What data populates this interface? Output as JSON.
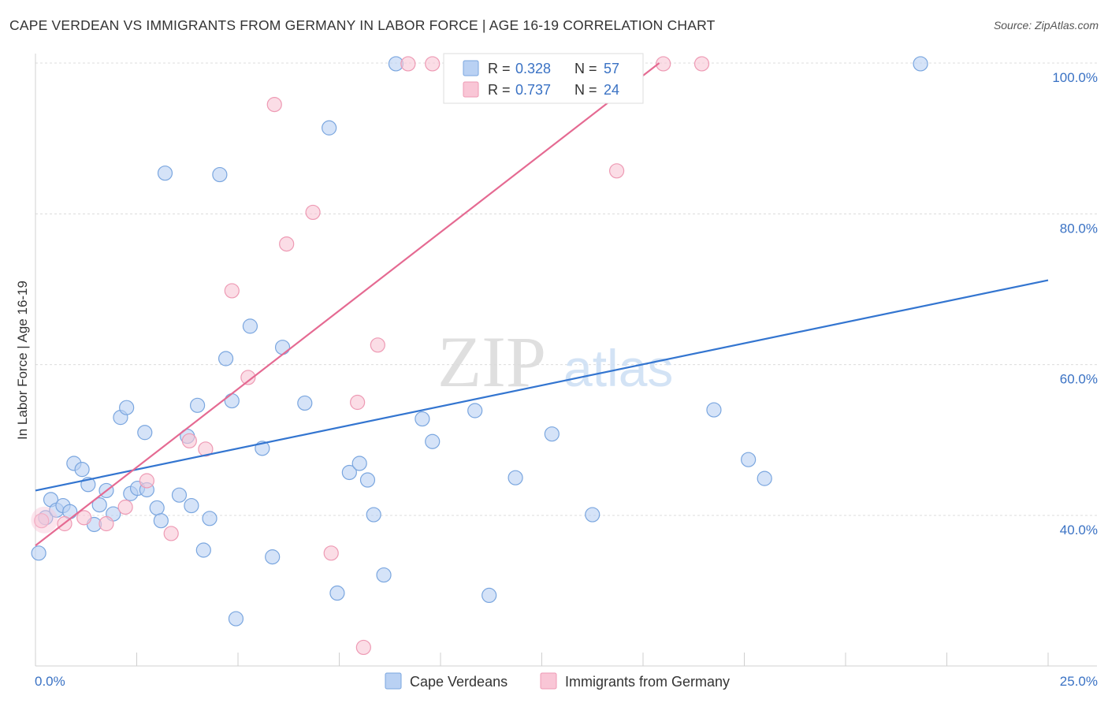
{
  "header": {
    "title": "CAPE VERDEAN VS IMMIGRANTS FROM GERMANY IN LABOR FORCE | AGE 16-19 CORRELATION CHART",
    "source": "Source: ZipAtlas.com"
  },
  "watermark": {
    "zip": "ZIP",
    "atlas": "atlas"
  },
  "legend": {
    "r_label": "R =",
    "n_label": "N =",
    "entries": [
      {
        "r": "0.328",
        "n": "57"
      },
      {
        "r": "0.737",
        "n": "24"
      }
    ]
  },
  "colors": {
    "blue_fill": "#b9d1f3",
    "blue_stroke": "#7aa6df",
    "blue_line": "#3375d0",
    "pink_fill": "#f9c6d6",
    "pink_stroke": "#ee9ab4",
    "pink_line": "#e56a92"
  },
  "chart_data": {
    "type": "scatter",
    "title": "CAPE VERDEAN VS IMMIGRANTS FROM GERMANY IN LABOR FORCE | AGE 16-19 CORRELATION CHART",
    "xlabel": "",
    "ylabel": "In Labor Force | Age 16-19",
    "xlim": [
      0,
      25
    ],
    "ylim": [
      22,
      101
    ],
    "x_tick_labels": [
      "0.0%",
      "25.0%"
    ],
    "y_ticks": [
      40,
      60,
      80,
      100
    ],
    "y_tick_labels": [
      "40.0%",
      "60.0%",
      "80.0%",
      "100.0%"
    ],
    "grid": true,
    "legend_position": "top-center",
    "series": [
      {
        "name": "Cape Verdeans",
        "color": "#b9d1f3",
        "r": 0.328,
        "n": 57,
        "trend": {
          "x": [
            0,
            25
          ],
          "y": [
            43.3,
            71.2
          ]
        },
        "points": [
          {
            "x": 0.08,
            "y": 35.0
          },
          {
            "x": 0.25,
            "y": 39.7
          },
          {
            "x": 0.38,
            "y": 42.1
          },
          {
            "x": 0.52,
            "y": 40.7
          },
          {
            "x": 0.68,
            "y": 41.3
          },
          {
            "x": 0.85,
            "y": 40.5
          },
          {
            "x": 0.95,
            "y": 46.9
          },
          {
            "x": 1.15,
            "y": 46.1
          },
          {
            "x": 1.3,
            "y": 44.1
          },
          {
            "x": 1.45,
            "y": 38.8
          },
          {
            "x": 1.58,
            "y": 41.4
          },
          {
            "x": 1.75,
            "y": 43.3
          },
          {
            "x": 1.92,
            "y": 40.2
          },
          {
            "x": 2.1,
            "y": 53.0
          },
          {
            "x": 2.25,
            "y": 54.3
          },
          {
            "x": 2.35,
            "y": 42.9
          },
          {
            "x": 2.52,
            "y": 43.6
          },
          {
            "x": 2.7,
            "y": 51.0
          },
          {
            "x": 2.75,
            "y": 43.4
          },
          {
            "x": 3.0,
            "y": 41.0
          },
          {
            "x": 3.1,
            "y": 39.3
          },
          {
            "x": 3.2,
            "y": 85.4
          },
          {
            "x": 3.55,
            "y": 42.7
          },
          {
            "x": 3.75,
            "y": 50.5
          },
          {
            "x": 3.85,
            "y": 41.3
          },
          {
            "x": 4.0,
            "y": 54.6
          },
          {
            "x": 4.15,
            "y": 35.4
          },
          {
            "x": 4.3,
            "y": 39.6
          },
          {
            "x": 4.55,
            "y": 85.2
          },
          {
            "x": 4.7,
            "y": 60.8
          },
          {
            "x": 4.85,
            "y": 55.2
          },
          {
            "x": 4.95,
            "y": 26.3
          },
          {
            "x": 5.3,
            "y": 65.1
          },
          {
            "x": 5.6,
            "y": 48.9
          },
          {
            "x": 5.85,
            "y": 34.5
          },
          {
            "x": 6.1,
            "y": 62.3
          },
          {
            "x": 6.65,
            "y": 54.9
          },
          {
            "x": 7.25,
            "y": 91.4
          },
          {
            "x": 7.45,
            "y": 29.7
          },
          {
            "x": 7.75,
            "y": 45.7
          },
          {
            "x": 8.0,
            "y": 46.9
          },
          {
            "x": 8.2,
            "y": 44.7
          },
          {
            "x": 8.35,
            "y": 40.1
          },
          {
            "x": 8.6,
            "y": 32.1
          },
          {
            "x": 8.9,
            "y": 99.9
          },
          {
            "x": 9.55,
            "y": 52.8
          },
          {
            "x": 9.8,
            "y": 49.8
          },
          {
            "x": 10.85,
            "y": 53.9
          },
          {
            "x": 11.2,
            "y": 29.4
          },
          {
            "x": 11.85,
            "y": 45.0
          },
          {
            "x": 12.75,
            "y": 50.8
          },
          {
            "x": 13.6,
            "y": 99.9
          },
          {
            "x": 13.75,
            "y": 40.1
          },
          {
            "x": 16.75,
            "y": 54.0
          },
          {
            "x": 17.6,
            "y": 47.4
          },
          {
            "x": 18.0,
            "y": 44.9
          },
          {
            "x": 21.85,
            "y": 99.9
          }
        ]
      },
      {
        "name": "Immigrants from Germany",
        "color": "#f9c6d6",
        "r": 0.737,
        "n": 24,
        "trend": {
          "x": [
            0,
            15.4
          ],
          "y": [
            36.0,
            100.0
          ]
        },
        "points": [
          {
            "x": 0.15,
            "y": 39.3
          },
          {
            "x": 0.72,
            "y": 38.9
          },
          {
            "x": 1.2,
            "y": 39.7
          },
          {
            "x": 1.75,
            "y": 38.9
          },
          {
            "x": 2.22,
            "y": 41.1
          },
          {
            "x": 2.75,
            "y": 44.6
          },
          {
            "x": 3.35,
            "y": 37.6
          },
          {
            "x": 3.8,
            "y": 49.9
          },
          {
            "x": 4.2,
            "y": 48.8
          },
          {
            "x": 4.85,
            "y": 69.8
          },
          {
            "x": 5.25,
            "y": 58.3
          },
          {
            "x": 5.9,
            "y": 94.5
          },
          {
            "x": 6.2,
            "y": 76.0
          },
          {
            "x": 6.85,
            "y": 80.2
          },
          {
            "x": 7.3,
            "y": 35.0
          },
          {
            "x": 7.95,
            "y": 55.0
          },
          {
            "x": 8.1,
            "y": 22.5
          },
          {
            "x": 8.45,
            "y": 62.6
          },
          {
            "x": 9.2,
            "y": 99.9
          },
          {
            "x": 9.8,
            "y": 99.9
          },
          {
            "x": 11.8,
            "y": 99.9
          },
          {
            "x": 14.35,
            "y": 85.7
          },
          {
            "x": 15.5,
            "y": 99.9
          },
          {
            "x": 16.45,
            "y": 99.9
          }
        ]
      }
    ]
  }
}
